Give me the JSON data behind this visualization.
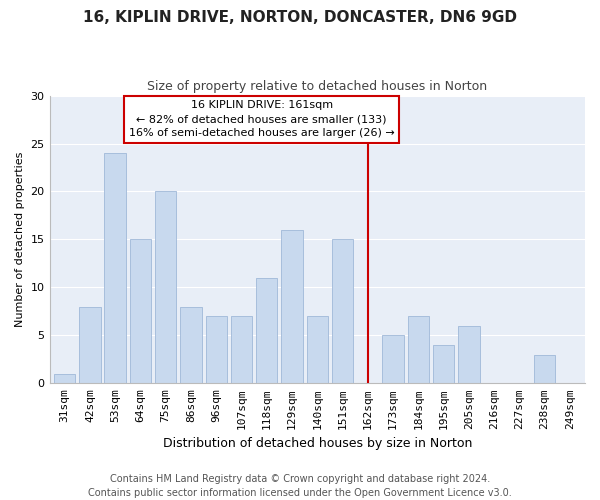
{
  "title": "16, KIPLIN DRIVE, NORTON, DONCASTER, DN6 9GD",
  "subtitle": "Size of property relative to detached houses in Norton",
  "xlabel": "Distribution of detached houses by size in Norton",
  "ylabel": "Number of detached properties",
  "footer_line1": "Contains HM Land Registry data © Crown copyright and database right 2024.",
  "footer_line2": "Contains public sector information licensed under the Open Government Licence v3.0.",
  "categories": [
    "31sqm",
    "42sqm",
    "53sqm",
    "64sqm",
    "75sqm",
    "86sqm",
    "96sqm",
    "107sqm",
    "118sqm",
    "129sqm",
    "140sqm",
    "151sqm",
    "162sqm",
    "173sqm",
    "184sqm",
    "195sqm",
    "205sqm",
    "216sqm",
    "227sqm",
    "238sqm",
    "249sqm"
  ],
  "values": [
    1,
    8,
    24,
    15,
    20,
    8,
    7,
    7,
    11,
    16,
    7,
    15,
    0,
    5,
    7,
    4,
    6,
    0,
    0,
    3,
    0
  ],
  "bar_color": "#c8d9ee",
  "bar_edge_color": "#a0b8d8",
  "reference_line_x_label": "162sqm",
  "reference_line_color": "#cc0000",
  "ylim": [
    0,
    30
  ],
  "annotation_title": "16 KIPLIN DRIVE: 161sqm",
  "annotation_line1": "← 82% of detached houses are smaller (133)",
  "annotation_line2": "16% of semi-detached houses are larger (26) →",
  "annotation_box_edge_color": "#cc0000",
  "plot_bg_color": "#e8eef7",
  "background_color": "#ffffff",
  "grid_color": "#ffffff",
  "title_fontsize": 11,
  "subtitle_fontsize": 9,
  "ylabel_fontsize": 8,
  "xlabel_fontsize": 9,
  "tick_fontsize": 8,
  "footer_fontsize": 7
}
